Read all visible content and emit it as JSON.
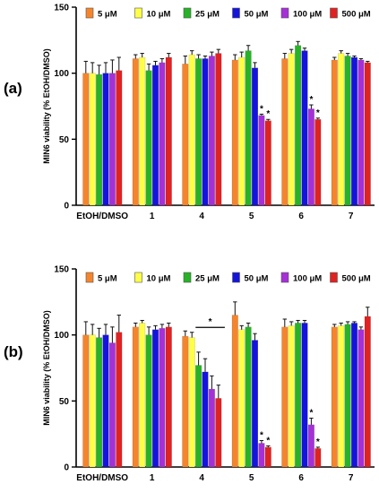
{
  "chart_data": [
    {
      "type": "bar",
      "panel_label": "(a)",
      "ylabel": "MIN6 viability (% EtOH/DMSO)",
      "ylim": [
        0,
        150
      ],
      "yticks": [
        0,
        50,
        100,
        150
      ],
      "grid": false,
      "legend_position": "top",
      "legend": [
        "5 μM",
        "10 μM",
        "25 μM",
        "50 μM",
        "100 μM",
        "500 μM"
      ],
      "colors": [
        "#f5852c",
        "#fefe47",
        "#27b227",
        "#1414dc",
        "#a530d6",
        "#e02222"
      ],
      "categories": [
        "EtOH/DMSO",
        "1",
        "4",
        "5",
        "6",
        "7"
      ],
      "series": [
        {
          "name": "5 μM",
          "values": [
            100,
            111,
            107,
            110,
            111,
            110
          ],
          "errors": [
            9,
            3,
            6,
            4,
            4,
            2
          ]
        },
        {
          "name": "10 μM",
          "values": [
            100,
            112,
            114,
            112,
            115,
            115
          ],
          "errors": [
            8,
            3,
            3,
            4,
            3,
            2
          ]
        },
        {
          "name": "25 μM",
          "values": [
            99,
            102,
            111,
            117,
            121,
            113
          ],
          "errors": [
            7,
            5,
            3,
            4,
            3,
            2
          ]
        },
        {
          "name": "50 μM",
          "values": [
            100,
            106,
            111,
            104,
            117,
            112
          ],
          "errors": [
            8,
            3,
            2,
            4,
            2,
            1
          ]
        },
        {
          "name": "100 μM",
          "values": [
            100,
            108,
            113,
            68,
            73,
            110
          ],
          "errors": [
            10,
            3,
            3,
            1,
            3,
            1
          ]
        },
        {
          "name": "500 μM",
          "values": [
            102,
            112,
            115,
            64,
            65,
            108
          ],
          "errors": [
            10,
            3,
            3,
            1,
            1,
            1
          ]
        }
      ],
      "significance": [
        {
          "category": "5",
          "series": "100 μM",
          "label": "*"
        },
        {
          "category": "5",
          "series": "500 μM",
          "label": "*"
        },
        {
          "category": "6",
          "series": "100 μM",
          "label": "*"
        },
        {
          "category": "6",
          "series": "500 μM",
          "label": "*"
        }
      ]
    },
    {
      "type": "bar",
      "panel_label": "(b)",
      "ylabel": "MIN6 viability (% EtOH/DMSO)",
      "ylim": [
        0,
        150
      ],
      "yticks": [
        0,
        50,
        100,
        150
      ],
      "grid": false,
      "legend_position": "top",
      "legend": [
        "5 μM",
        "10 μM",
        "25 μM",
        "50 μM",
        "100 μM",
        "500 μM"
      ],
      "colors": [
        "#f5852c",
        "#fefe47",
        "#27b227",
        "#1414dc",
        "#a530d6",
        "#e02222"
      ],
      "categories": [
        "EtOH/DMSO",
        "1",
        "4",
        "5",
        "6",
        "7"
      ],
      "series": [
        {
          "name": "5 μM",
          "values": [
            100,
            106,
            99,
            115,
            106,
            106
          ],
          "errors": [
            10,
            3,
            4,
            10,
            6,
            2
          ]
        },
        {
          "name": "10 μM",
          "values": [
            100,
            109,
            98,
            104,
            107,
            107
          ],
          "errors": [
            8,
            2,
            4,
            3,
            3,
            2
          ]
        },
        {
          "name": "25 μM",
          "values": [
            98,
            100,
            77,
            106,
            109,
            108
          ],
          "errors": [
            7,
            6,
            10,
            3,
            2,
            2
          ]
        },
        {
          "name": "50 μM",
          "values": [
            100,
            104,
            72,
            96,
            109,
            109
          ],
          "errors": [
            8,
            3,
            10,
            5,
            2,
            1
          ]
        },
        {
          "name": "100 μM",
          "values": [
            94,
            105,
            59,
            18,
            32,
            104
          ],
          "errors": [
            12,
            3,
            10,
            2,
            5,
            2
          ]
        },
        {
          "name": "500 μM",
          "values": [
            102,
            106,
            52,
            15,
            14,
            114
          ],
          "errors": [
            13,
            3,
            10,
            1,
            1,
            7
          ]
        }
      ],
      "significance": [
        {
          "category": "4",
          "series": "all",
          "label": "*"
        },
        {
          "category": "5",
          "series": "100 μM",
          "label": "*"
        },
        {
          "category": "5",
          "series": "500 μM",
          "label": "*"
        },
        {
          "category": "6",
          "series": "100 μM",
          "label": "*"
        },
        {
          "category": "6",
          "series": "500 μM",
          "label": "*"
        }
      ]
    }
  ]
}
